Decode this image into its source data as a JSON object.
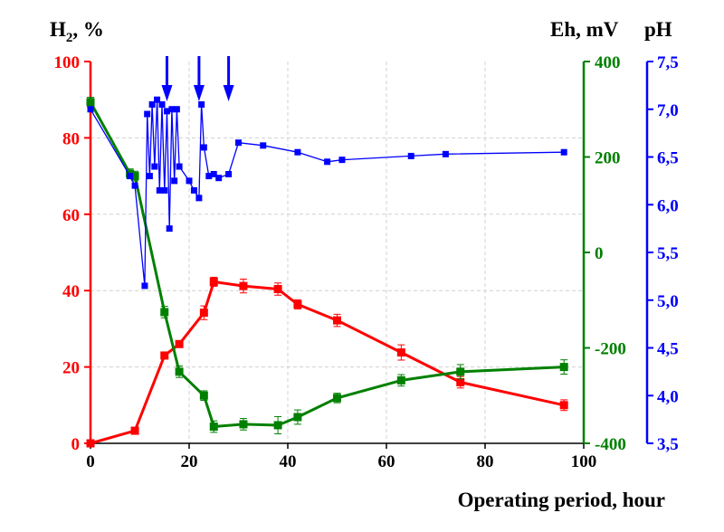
{
  "chart_data": {
    "type": "line",
    "xlabel": "Operating period, hour",
    "xlim": [
      0,
      100
    ],
    "x_ticks": [
      0,
      20,
      40,
      60,
      80,
      100
    ],
    "grid": true,
    "colors": {
      "h2": "#ff0000",
      "eh": "#008000",
      "ph": "#0000ff",
      "grid": "#d0d0d0"
    },
    "axes": {
      "h2": {
        "label_main": "H",
        "label_sub": "2",
        "label_rest": ", %",
        "range": [
          0,
          100
        ],
        "ticks": [
          "0",
          "20",
          "40",
          "60",
          "80",
          "100"
        ],
        "tick_values": [
          0,
          20,
          40,
          60,
          80,
          100
        ]
      },
      "eh": {
        "label": "Eh, mV",
        "range": [
          -400,
          400
        ],
        "ticks": [
          "-400",
          "-200",
          "0",
          "200",
          "400"
        ],
        "tick_values": [
          -400,
          -200,
          0,
          200,
          400
        ]
      },
      "ph": {
        "label": "pH",
        "range": [
          3.5,
          7.5
        ],
        "ticks": [
          "3,5",
          "4,0",
          "4,5",
          "5,0",
          "5,5",
          "6,0",
          "6,5",
          "7,0",
          "7,5"
        ],
        "tick_values": [
          3.5,
          4.0,
          4.5,
          5.0,
          5.5,
          6.0,
          6.5,
          7.0,
          7.5
        ]
      }
    },
    "series": [
      {
        "key": "h2",
        "axis": "h2",
        "x": [
          0,
          9,
          15,
          18,
          23,
          25,
          31,
          38,
          42,
          50,
          63,
          75,
          96
        ],
        "y": [
          0,
          3.3,
          23,
          26,
          34.2,
          42.3,
          41.2,
          40.4,
          36.4,
          32.2,
          23.8,
          16,
          10
        ],
        "error": [
          0,
          0.5,
          0.8,
          0.8,
          1.8,
          1.2,
          1.8,
          1.6,
          1.2,
          1.6,
          2.0,
          1.5,
          1.4
        ]
      },
      {
        "key": "eh",
        "axis": "eh",
        "x": [
          0,
          8,
          9,
          15,
          18,
          23,
          25,
          31,
          38,
          42,
          50,
          63,
          75,
          96
        ],
        "y": [
          315,
          165,
          160,
          -125,
          -250,
          -300,
          -365,
          -360,
          -362,
          -345,
          -305,
          -268,
          -250,
          -240
        ],
        "error": [
          10,
          10,
          10,
          12,
          12,
          10,
          12,
          12,
          18,
          15,
          10,
          12,
          15,
          15
        ]
      },
      {
        "key": "ph",
        "axis": "ph",
        "x": [
          0,
          8,
          9,
          11,
          11.5,
          12,
          12.5,
          13,
          13.5,
          14,
          14.5,
          15,
          15.5,
          16,
          16.5,
          17,
          17.5,
          18,
          20,
          21,
          22,
          22.5,
          23,
          24,
          25,
          26,
          28,
          30,
          35,
          42,
          48,
          51,
          65,
          72,
          96
        ],
        "y": [
          7.0,
          6.3,
          6.2,
          5.15,
          6.95,
          6.3,
          7.05,
          6.4,
          7.1,
          6.15,
          7.05,
          6.15,
          6.98,
          5.75,
          7.0,
          6.25,
          7.0,
          6.4,
          6.25,
          6.15,
          6.07,
          7.05,
          6.6,
          6.3,
          6.32,
          6.28,
          6.32,
          6.65,
          6.62,
          6.55,
          6.45,
          6.47,
          6.51,
          6.53,
          6.55
        ]
      }
    ],
    "arrows_x": [
      15.5,
      22,
      28
    ]
  }
}
